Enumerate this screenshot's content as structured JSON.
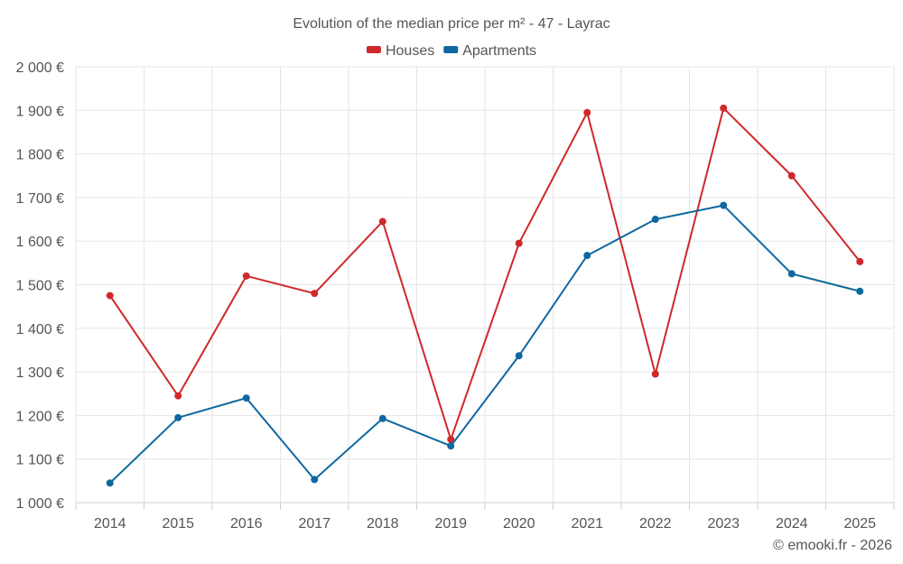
{
  "chart_data": {
    "type": "line",
    "title": "Evolution of the median price per m² - 47 - Layrac",
    "categories": [
      "2014",
      "2015",
      "2016",
      "2017",
      "2018",
      "2019",
      "2020",
      "2021",
      "2022",
      "2023",
      "2024",
      "2025"
    ],
    "series": [
      {
        "name": "Houses",
        "color": "#d0282b",
        "values": [
          1475,
          1245,
          1520,
          1480,
          1645,
          1145,
          1595,
          1895,
          1295,
          1905,
          1750,
          1553
        ]
      },
      {
        "name": "Apartments",
        "color": "#0f68a0",
        "values": [
          1045,
          1195,
          1240,
          1053,
          1193,
          1130,
          1337,
          1567,
          1650,
          1682,
          1525,
          1485
        ]
      }
    ],
    "ylim": [
      1000,
      2000
    ],
    "yticks": [
      1000,
      1100,
      1200,
      1300,
      1400,
      1500,
      1600,
      1700,
      1800,
      1900,
      2000
    ],
    "ytick_labels": [
      "1 000 €",
      "1 100 €",
      "1 200 €",
      "1 300 €",
      "1 400 €",
      "1 500 €",
      "1 600 €",
      "1 700 €",
      "1 800 €",
      "1 900 €",
      "2 000 €"
    ],
    "xlabel": "",
    "ylabel": "",
    "legend_position": "top-center",
    "grid": true
  },
  "credit": "© emooki.fr - 2026"
}
